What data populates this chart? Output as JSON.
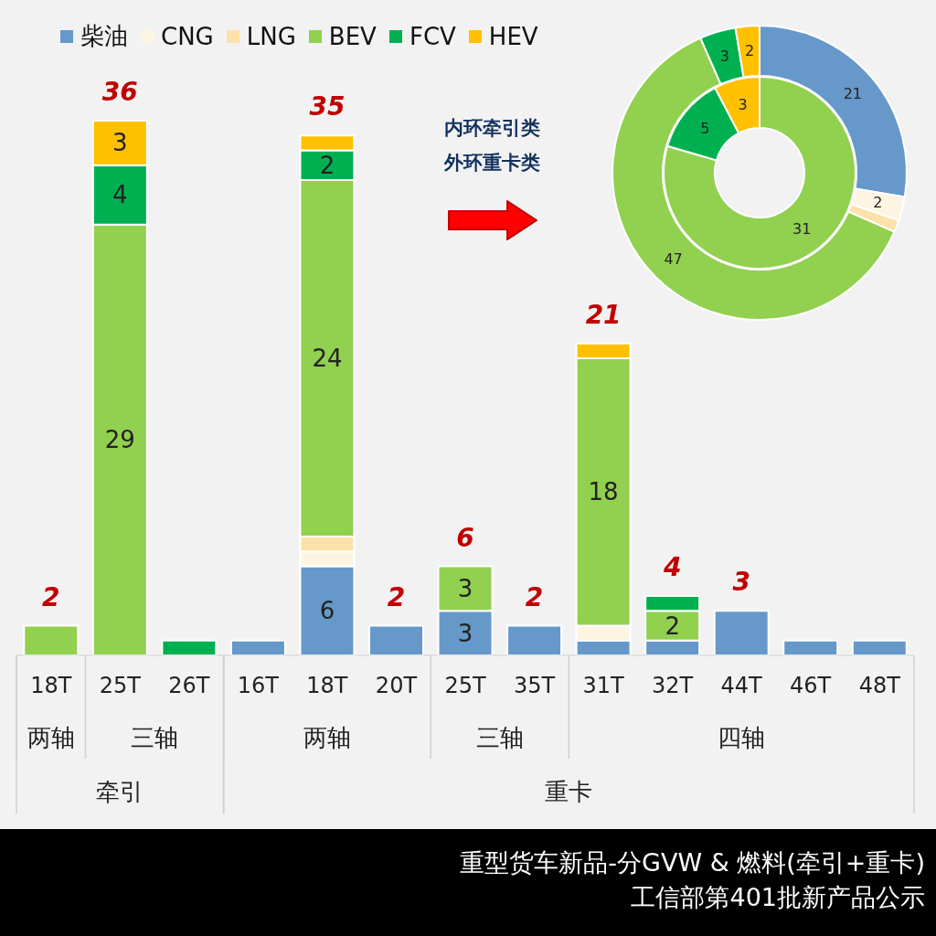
{
  "chart_data": [
    {
      "type": "bar",
      "stacked": true,
      "title": "重型货车新品-分GVW & 燃料(牵引+重卡)",
      "subtitle": "工信部第401批新产品公示",
      "categories": [
        "18T",
        "25T",
        "26T",
        "16T",
        "18T",
        "20T",
        "25T",
        "35T",
        "31T",
        "32T",
        "44T",
        "46T",
        "48T"
      ],
      "series": [
        {
          "name": "柴油",
          "color": "#6699c9",
          "values": [
            null,
            null,
            null,
            1,
            6,
            2,
            3,
            2,
            1,
            1,
            3,
            1,
            1
          ],
          "value_labels": [
            null,
            null,
            null,
            null,
            "6",
            null,
            "3",
            null,
            null,
            null,
            null,
            null,
            null
          ]
        },
        {
          "name": "CNG",
          "color": "#fdf5e2",
          "values": [
            null,
            null,
            null,
            null,
            1,
            null,
            null,
            null,
            1,
            null,
            null,
            null,
            null
          ]
        },
        {
          "name": "LNG",
          "color": "#fde1aa",
          "values": [
            null,
            null,
            null,
            null,
            1,
            null,
            null,
            null,
            null,
            null,
            null,
            null,
            null
          ]
        },
        {
          "name": "BEV",
          "color": "#92d050",
          "values": [
            2,
            29,
            null,
            null,
            24,
            null,
            3,
            null,
            18,
            2,
            null,
            null,
            null
          ],
          "value_labels": [
            null,
            "29",
            null,
            null,
            "24",
            null,
            "3",
            null,
            "18",
            "2",
            null,
            null,
            null
          ]
        },
        {
          "name": "FCV",
          "color": "#00b050",
          "values": [
            null,
            4,
            1,
            null,
            2,
            null,
            null,
            null,
            null,
            1,
            null,
            null,
            null
          ],
          "value_labels": [
            null,
            "4",
            null,
            null,
            "2",
            null,
            null,
            null,
            null,
            null,
            null,
            null,
            null
          ]
        },
        {
          "name": "HEV",
          "color": "#ffc000",
          "values": [
            null,
            3,
            null,
            null,
            1,
            null,
            null,
            null,
            1,
            null,
            null,
            null,
            null
          ],
          "value_labels": [
            null,
            "3",
            null,
            null,
            null,
            null,
            null,
            null,
            null,
            null,
            null,
            null,
            null
          ]
        }
      ],
      "totals": [
        "2",
        "36",
        null,
        null,
        "35",
        "2",
        "6",
        "2",
        "21",
        "4",
        "3",
        null,
        null
      ],
      "legend": "top",
      "annotations": [
        "两轴",
        "三轴",
        "两轴",
        "三轴",
        "四轴",
        "牵引",
        "重卡"
      ]
    },
    {
      "type": "donut",
      "categories": [
        null,
        null,
        null,
        null,
        null,
        null
      ],
      "colors": [
        "#6699c9",
        "#fdf5e2",
        "#fde1aa",
        "#92d050",
        "#00b050",
        "#ffc000"
      ],
      "series": [
        {
          "values": [
            0,
            0,
            0,
            31,
            5,
            3
          ],
          "value_labels": [
            null,
            null,
            null,
            "31",
            "5",
            "3"
          ]
        },
        {
          "values": [
            21,
            2,
            1,
            47,
            3,
            2
          ],
          "value_labels": [
            "21",
            "2",
            null,
            "47",
            "3",
            "2"
          ]
        }
      ],
      "annotations": [
        "内环牵引类",
        "外环重卡类"
      ]
    }
  ]
}
